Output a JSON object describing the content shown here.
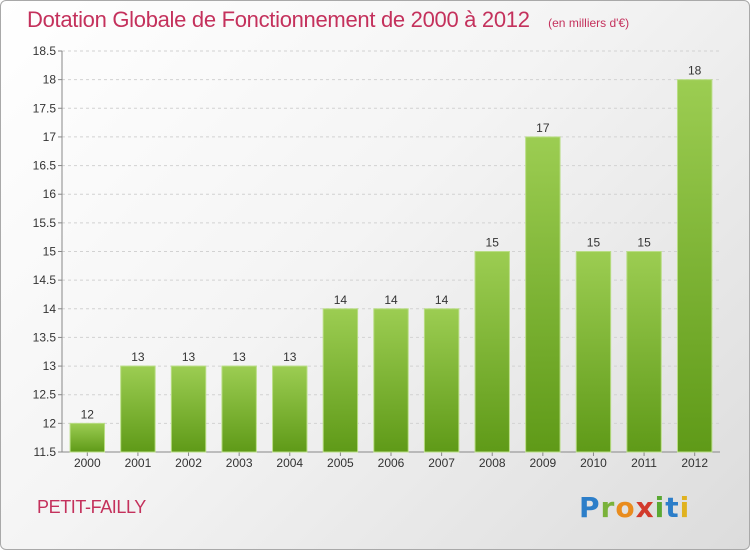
{
  "title": "Dotation Globale de Fonctionnement de 2000 à 2012",
  "unit_note": "(en milliers d'€)",
  "commune": "PETIT-FAILLY",
  "logo": {
    "text": "Proxiti",
    "letters": [
      "P",
      "r",
      "o",
      "x",
      "i",
      "t",
      "i"
    ]
  },
  "colors": {
    "bar_top": "#9ccd52",
    "bar_bottom": "#5f9a18",
    "title": "#c4315c"
  },
  "chart_data": {
    "type": "bar",
    "categories": [
      "2000",
      "2001",
      "2002",
      "2003",
      "2004",
      "2005",
      "2006",
      "2007",
      "2008",
      "2009",
      "2010",
      "2011",
      "2012"
    ],
    "values": [
      12,
      13,
      13,
      13,
      13,
      14,
      14,
      14,
      15,
      17,
      15,
      15,
      18
    ],
    "ylim": [
      11.5,
      18.5
    ],
    "yticks": [
      11.5,
      12,
      12.5,
      13,
      13.5,
      14,
      14.5,
      15,
      15.5,
      16,
      16.5,
      17,
      17.5,
      18,
      18.5
    ],
    "ytick_labels": [
      "11.5",
      "12",
      "12.5",
      "13",
      "13.5",
      "14",
      "14.5",
      "15",
      "15.5",
      "16",
      "16.5",
      "17",
      "17.5",
      "18",
      "18.5"
    ],
    "grid": true,
    "xlabel": "",
    "ylabel": ""
  }
}
